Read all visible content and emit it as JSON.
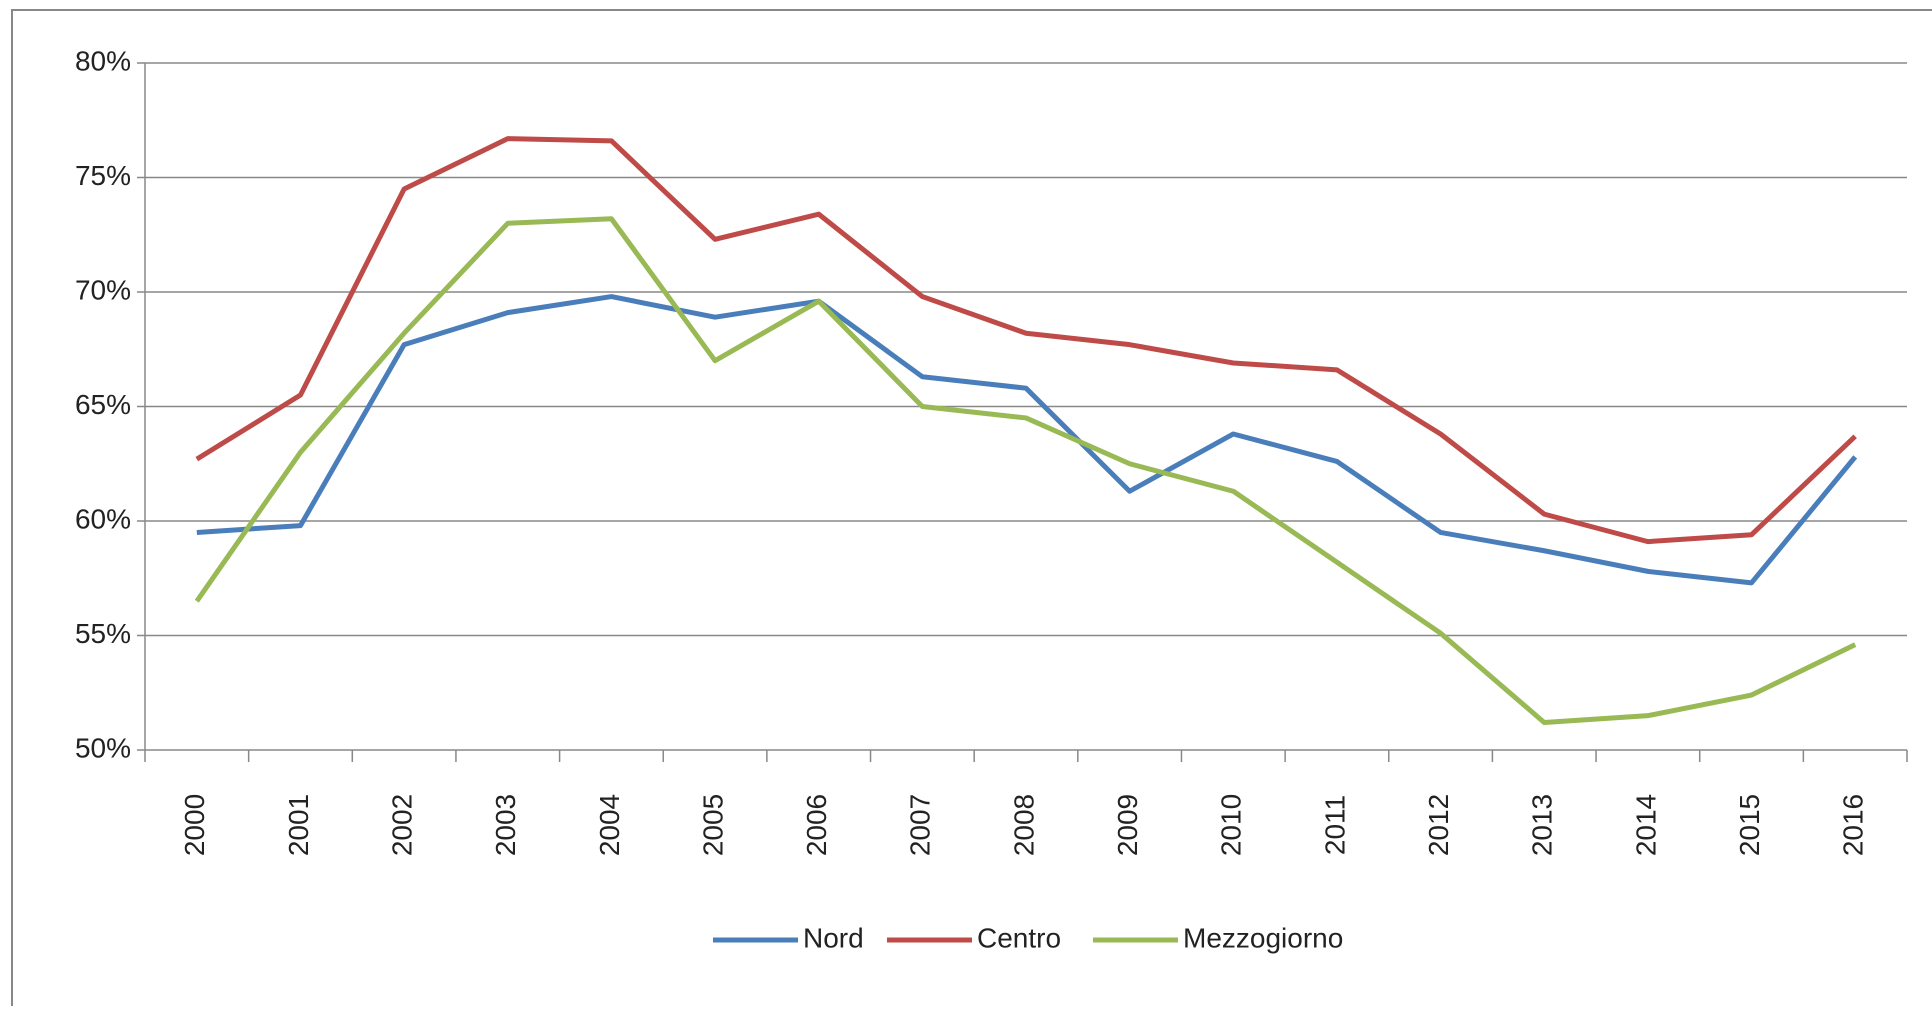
{
  "chart_data": {
    "type": "line",
    "categories": [
      "2000",
      "2001",
      "2002",
      "2003",
      "2004",
      "2005",
      "2006",
      "2007",
      "2008",
      "2009",
      "2010",
      "2011",
      "2012",
      "2013",
      "2014",
      "2015",
      "2016"
    ],
    "series": [
      {
        "name": "Nord",
        "color": "#4a7ebb",
        "values": [
          59.5,
          59.8,
          67.7,
          69.1,
          69.8,
          68.9,
          69.6,
          66.3,
          65.8,
          61.3,
          63.8,
          62.6,
          59.5,
          58.7,
          57.8,
          57.3,
          62.8
        ]
      },
      {
        "name": "Centro",
        "color": "#be4b48",
        "values": [
          62.7,
          65.5,
          74.5,
          76.7,
          76.6,
          72.3,
          73.4,
          69.8,
          68.2,
          67.7,
          66.9,
          66.6,
          63.8,
          60.3,
          59.1,
          59.4,
          63.7
        ]
      },
      {
        "name": "Mezzogiorno",
        "color": "#98b954",
        "values": [
          56.5,
          63.0,
          68.2,
          73.0,
          73.2,
          67.0,
          69.6,
          65.0,
          64.5,
          62.5,
          61.3,
          58.2,
          55.1,
          51.2,
          51.5,
          52.4,
          54.6
        ]
      }
    ],
    "ylim": [
      50,
      80
    ],
    "yticks": [
      {
        "value": 50,
        "label": "50%"
      },
      {
        "value": 55,
        "label": "55%"
      },
      {
        "value": 60,
        "label": "60%"
      },
      {
        "value": 65,
        "label": "65%"
      },
      {
        "value": 70,
        "label": "70%"
      },
      {
        "value": 75,
        "label": "75%"
      },
      {
        "value": 80,
        "label": "80%"
      }
    ],
    "grid": true,
    "legend": "bottom"
  }
}
